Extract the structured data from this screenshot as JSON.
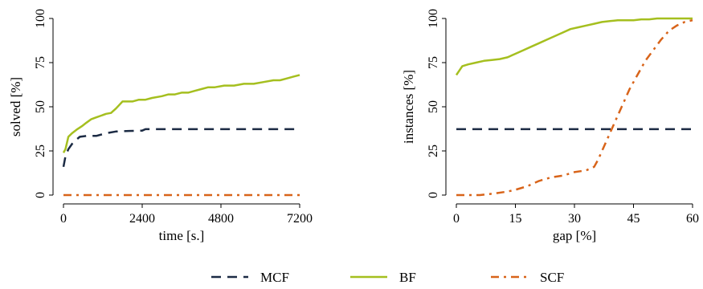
{
  "colors": {
    "MCF": "#1c2b44",
    "BF": "#a5bf1f",
    "SCF": "#d8641a"
  },
  "legend": {
    "position": "bottom-center",
    "items": [
      {
        "label": "MCF",
        "color": "#1c2b44",
        "dash": "dashed"
      },
      {
        "label": "BF",
        "color": "#a5bf1f",
        "dash": "solid"
      },
      {
        "label": "SCF",
        "color": "#d8641a",
        "dash": "dashdot"
      }
    ]
  },
  "chart_data": [
    {
      "type": "line",
      "xlabel": "time [s.]",
      "ylabel": "solved [%]",
      "xlim": [
        0,
        7200
      ],
      "ylim": [
        0,
        100
      ],
      "xticks": [
        0,
        2400,
        4800,
        7200
      ],
      "yticks": [
        0,
        25,
        50,
        75,
        100
      ],
      "grid": false,
      "series": [
        {
          "name": "MCF",
          "color": "#1c2b44",
          "dash": "dashed",
          "x": [
            0,
            60,
            150,
            300,
            500,
            700,
            1000,
            1300,
            1600,
            2000,
            2400,
            2500,
            7200
          ],
          "y": [
            16,
            22,
            26,
            30,
            33,
            33.5,
            33.5,
            35,
            36,
            36.3,
            36.5,
            37.3,
            37.3
          ]
        },
        {
          "name": "BF",
          "color": "#a5bf1f",
          "dash": "solid",
          "x": [
            0,
            60,
            150,
            260,
            400,
            560,
            700,
            850,
            1000,
            1150,
            1300,
            1450,
            1600,
            1700,
            1800,
            1900,
            2100,
            2300,
            2500,
            2700,
            3000,
            3200,
            3400,
            3600,
            3800,
            4000,
            4200,
            4400,
            4600,
            4900,
            5200,
            5500,
            5800,
            6100,
            6400,
            6600,
            6800,
            7000,
            7200
          ],
          "y": [
            24,
            26,
            33,
            35,
            37,
            39,
            41,
            43,
            44,
            45,
            46,
            46.5,
            49,
            51,
            53,
            53,
            53,
            54,
            54,
            55,
            56,
            57,
            57,
            58,
            58,
            59,
            60,
            61,
            61,
            62,
            62,
            63,
            63,
            64,
            65,
            65,
            66,
            67,
            68
          ]
        },
        {
          "name": "SCF",
          "color": "#d8641a",
          "dash": "dashdot",
          "x": [
            0,
            7200
          ],
          "y": [
            0,
            0
          ]
        }
      ]
    },
    {
      "type": "line",
      "xlabel": "gap [%]",
      "ylabel": "instances [%]",
      "xlim": [
        0,
        60
      ],
      "ylim": [
        0,
        100
      ],
      "xticks": [
        0,
        15,
        30,
        45,
        60
      ],
      "yticks": [
        0,
        25,
        50,
        75,
        100
      ],
      "grid": false,
      "series": [
        {
          "name": "MCF",
          "color": "#1c2b44",
          "dash": "dashed",
          "x": [
            0,
            60
          ],
          "y": [
            37.3,
            37.3
          ]
        },
        {
          "name": "BF",
          "color": "#a5bf1f",
          "dash": "solid",
          "x": [
            0,
            1.5,
            3,
            5,
            7,
            9,
            11,
            13,
            15,
            17,
            19,
            21,
            23,
            25,
            27,
            29,
            31,
            33,
            35,
            37,
            39,
            41,
            43,
            45,
            47,
            49,
            51,
            53,
            55,
            57,
            59,
            60
          ],
          "y": [
            68,
            73,
            74,
            75,
            76,
            76.5,
            77,
            78,
            80,
            82,
            84,
            86,
            88,
            90,
            92,
            94,
            95,
            96,
            97,
            98,
            98.5,
            99,
            99,
            99,
            99.5,
            99.5,
            100,
            100,
            100,
            100,
            100,
            100
          ]
        },
        {
          "name": "SCF",
          "color": "#d8641a",
          "dash": "dashdot",
          "x": [
            0,
            3,
            6,
            8,
            10,
            13,
            15,
            18,
            21,
            24,
            27,
            30,
            33,
            35,
            36,
            38,
            40,
            42,
            44,
            46,
            48,
            50,
            52,
            54,
            56,
            58,
            60
          ],
          "y": [
            0,
            0,
            0,
            0.5,
            1,
            2,
            3,
            5,
            8,
            10,
            11,
            13,
            14,
            16,
            20,
            30,
            40,
            50,
            60,
            68,
            76,
            82,
            88,
            93,
            96,
            98,
            99
          ]
        }
      ]
    }
  ]
}
